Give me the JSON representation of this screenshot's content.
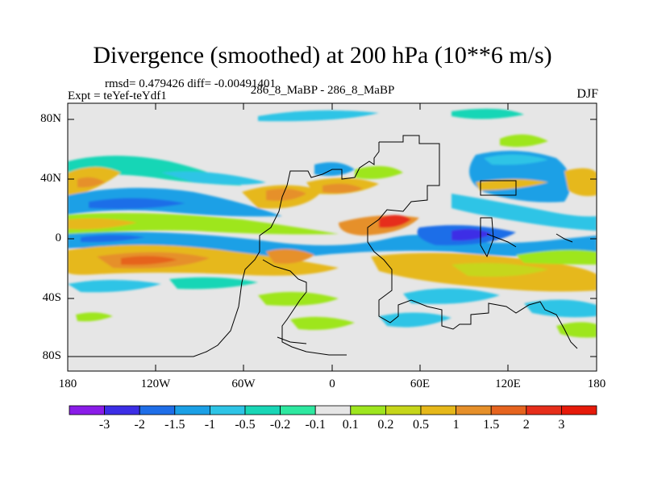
{
  "title": "Divergence (smoothed) at 200 hPa (10**6 m/s)",
  "stats_line": "rmsd= 0.479426  diff= -0.00491401",
  "experiment": "Expt = teYef-teYdf1",
  "comparison": "286_8_MaBP - 286_8_MaBP",
  "season": "DJF",
  "lat_ticks": [
    "80N",
    "40N",
    "0",
    "40S",
    "80S"
  ],
  "lon_ticks": [
    "180",
    "120W",
    "60W",
    "0",
    "60E",
    "120E",
    "180"
  ],
  "colorbar": {
    "labels": [
      "-3",
      "-2",
      "-1.5",
      "-1",
      "-0.5",
      "-0.2",
      "-0.1",
      "0.1",
      "0.2",
      "0.5",
      "1",
      "1.5",
      "2",
      "3"
    ],
    "colors": [
      "#8a1ce8",
      "#3c2ee6",
      "#1f6ee8",
      "#1ba0e6",
      "#2ec4e6",
      "#19d6b6",
      "#2ee8a0",
      "#e6e6e6",
      "#9ee61f",
      "#c6d61a",
      "#e6b81a",
      "#e6902a",
      "#e6641f",
      "#e62e1a",
      "#e61a0a"
    ]
  }
}
